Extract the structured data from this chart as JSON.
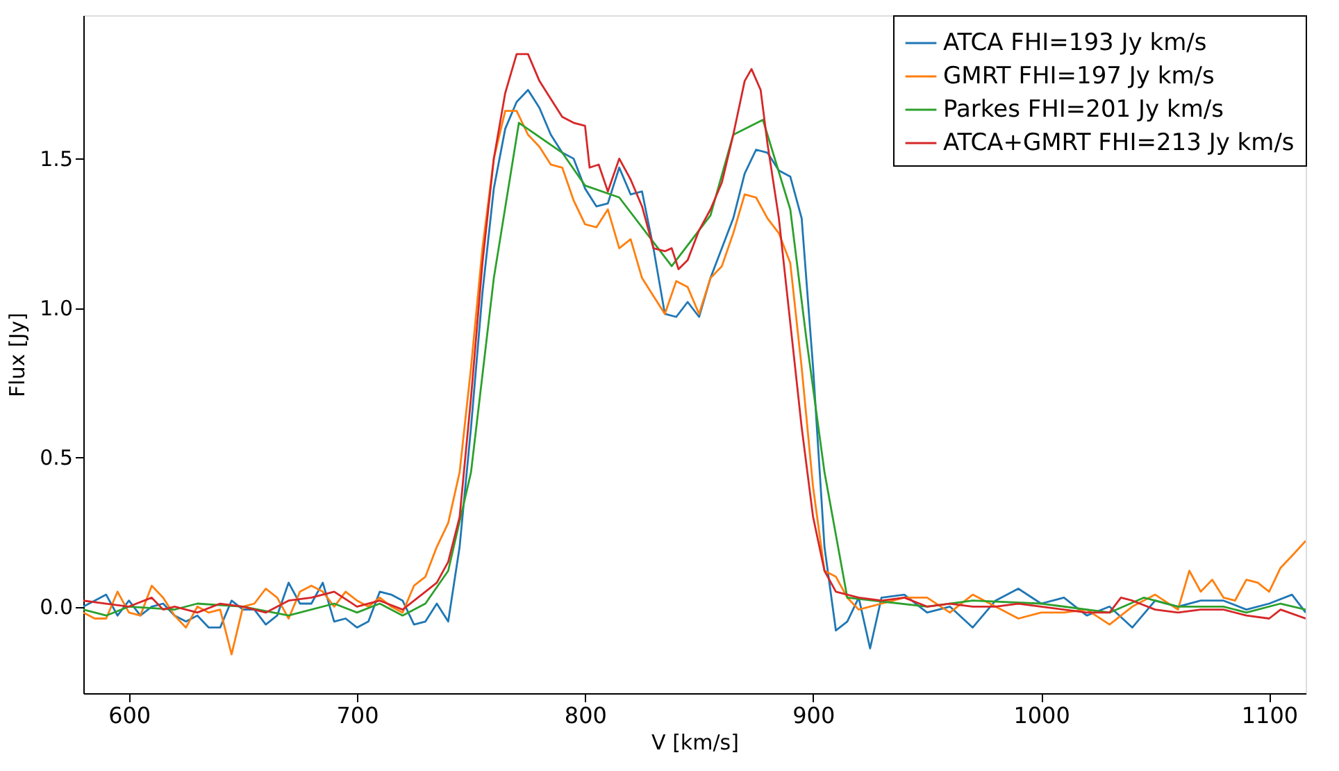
{
  "chart_data": {
    "type": "line",
    "xlabel": "V [km/s]",
    "ylabel": "Flux [Jy]",
    "xlim": [
      580,
      1116
    ],
    "ylim": [
      -0.29,
      1.98
    ],
    "xticks": [
      600,
      700,
      800,
      900,
      1000,
      1100
    ],
    "yticks": [
      {
        "value": 0,
        "label": "0.0"
      },
      {
        "value": 0.5,
        "label": "0.5"
      },
      {
        "value": 1,
        "label": "1.0"
      },
      {
        "value": 1.5,
        "label": "1.5"
      }
    ],
    "grid": false,
    "legend": "top right",
    "marker": "none",
    "line_style": "solid",
    "series": [
      {
        "name": "ATCA FHI=193 Jy km/s",
        "color": "#1f77b4",
        "x": [
          580,
          585,
          590,
          595,
          600,
          605,
          610,
          615,
          620,
          625,
          630,
          635,
          640,
          645,
          650,
          655,
          660,
          665,
          670,
          675,
          680,
          685,
          690,
          695,
          700,
          705,
          710,
          715,
          720,
          725,
          730,
          735,
          740,
          745,
          750,
          755,
          760,
          765,
          770,
          775,
          780,
          785,
          790,
          795,
          800,
          805,
          810,
          815,
          820,
          825,
          830,
          835,
          840,
          845,
          850,
          855,
          860,
          865,
          870,
          875,
          880,
          885,
          890,
          895,
          900,
          905,
          910,
          915,
          920,
          925,
          930,
          940,
          950,
          960,
          970,
          980,
          990,
          1000,
          1010,
          1020,
          1030,
          1040,
          1050,
          1060,
          1070,
          1080,
          1090,
          1100,
          1110,
          1116
        ],
        "values": [
          0.0,
          0.02,
          0.04,
          -0.03,
          0.02,
          -0.03,
          0.0,
          0.01,
          -0.03,
          -0.05,
          -0.03,
          -0.07,
          -0.07,
          0.02,
          -0.01,
          -0.01,
          -0.06,
          -0.03,
          0.08,
          0.01,
          0.01,
          0.08,
          -0.05,
          -0.04,
          -0.07,
          -0.05,
          0.05,
          0.04,
          0.02,
          -0.06,
          -0.05,
          0.01,
          -0.05,
          0.2,
          0.6,
          1.05,
          1.4,
          1.6,
          1.69,
          1.73,
          1.67,
          1.58,
          1.52,
          1.5,
          1.4,
          1.34,
          1.35,
          1.47,
          1.38,
          1.39,
          1.2,
          0.98,
          0.97,
          1.02,
          0.97,
          1.1,
          1.2,
          1.3,
          1.45,
          1.53,
          1.52,
          1.46,
          1.44,
          1.3,
          0.8,
          0.2,
          -0.08,
          -0.05,
          0.03,
          -0.14,
          0.03,
          0.04,
          -0.02,
          0.0,
          -0.07,
          0.02,
          0.06,
          0.01,
          0.03,
          -0.03,
          0.0,
          -0.07,
          0.02,
          0.0,
          0.02,
          0.02,
          -0.01,
          0.01,
          0.04,
          -0.02
        ]
      },
      {
        "name": "GMRT FHI=197 Jy km/s",
        "color": "#ff7f0e",
        "x": [
          580,
          585,
          590,
          595,
          600,
          605,
          610,
          615,
          620,
          625,
          630,
          635,
          640,
          645,
          650,
          655,
          660,
          665,
          670,
          675,
          680,
          685,
          690,
          695,
          700,
          705,
          710,
          715,
          720,
          725,
          730,
          735,
          740,
          745,
          750,
          755,
          760,
          765,
          770,
          775,
          780,
          785,
          790,
          795,
          800,
          805,
          810,
          815,
          820,
          825,
          830,
          835,
          840,
          845,
          850,
          855,
          860,
          865,
          870,
          875,
          880,
          885,
          890,
          895,
          900,
          905,
          910,
          915,
          920,
          930,
          940,
          950,
          960,
          970,
          980,
          990,
          1000,
          1010,
          1020,
          1030,
          1040,
          1050,
          1060,
          1065,
          1070,
          1075,
          1080,
          1085,
          1090,
          1095,
          1100,
          1105,
          1110,
          1116
        ],
        "values": [
          -0.02,
          -0.04,
          -0.04,
          0.05,
          -0.02,
          -0.03,
          0.07,
          0.03,
          -0.03,
          -0.07,
          0.0,
          -0.02,
          -0.01,
          -0.16,
          0.0,
          0.01,
          0.06,
          0.03,
          -0.04,
          0.05,
          0.07,
          0.05,
          0.0,
          0.05,
          0.02,
          0.0,
          0.03,
          0.0,
          -0.02,
          0.07,
          0.1,
          0.2,
          0.28,
          0.45,
          0.8,
          1.2,
          1.5,
          1.66,
          1.66,
          1.58,
          1.54,
          1.48,
          1.47,
          1.36,
          1.28,
          1.27,
          1.33,
          1.2,
          1.23,
          1.1,
          1.04,
          0.98,
          1.09,
          1.07,
          0.98,
          1.1,
          1.14,
          1.25,
          1.38,
          1.37,
          1.3,
          1.25,
          1.15,
          0.8,
          0.4,
          0.12,
          0.1,
          0.03,
          -0.01,
          0.01,
          0.03,
          0.03,
          -0.02,
          0.04,
          0.0,
          -0.04,
          -0.02,
          -0.02,
          -0.01,
          -0.06,
          0.0,
          0.04,
          -0.01,
          0.12,
          0.05,
          0.09,
          0.03,
          0.02,
          0.09,
          0.08,
          0.05,
          0.13,
          0.17,
          0.22
        ]
      },
      {
        "name": "Parkes FHI=201 Jy km/s",
        "color": "#2ca02c",
        "x": [
          580,
          590,
          600,
          620,
          630,
          650,
          670,
          690,
          700,
          710,
          720,
          730,
          740,
          750,
          760,
          771,
          790,
          800,
          815,
          838,
          855,
          865,
          878,
          890,
          897,
          905,
          915,
          950,
          970,
          1000,
          1030,
          1045,
          1060,
          1080,
          1090,
          1105,
          1116
        ],
        "values": [
          -0.01,
          -0.03,
          0.0,
          -0.01,
          0.01,
          0.0,
          -0.03,
          0.01,
          -0.02,
          0.01,
          -0.03,
          0.01,
          0.12,
          0.45,
          1.1,
          1.62,
          1.52,
          1.41,
          1.37,
          1.14,
          1.31,
          1.58,
          1.63,
          1.33,
          0.9,
          0.45,
          0.03,
          0.0,
          0.02,
          0.01,
          -0.02,
          0.03,
          0.0,
          0.0,
          -0.02,
          0.01,
          -0.01
        ]
      },
      {
        "name": "ATCA+GMRT FHI=213 Jy km/s",
        "color": "#d62728",
        "x": [
          580,
          590,
          600,
          610,
          615,
          620,
          630,
          640,
          650,
          660,
          670,
          680,
          690,
          700,
          710,
          720,
          730,
          735,
          740,
          745,
          750,
          755,
          760,
          765,
          770,
          775,
          780,
          785,
          790,
          795,
          800,
          802,
          806,
          810,
          815,
          820,
          825,
          830,
          835,
          838,
          841,
          845,
          850,
          855,
          860,
          865,
          870,
          873,
          877,
          880,
          885,
          890,
          895,
          900,
          905,
          910,
          920,
          930,
          940,
          950,
          960,
          970,
          980,
          990,
          1000,
          1010,
          1020,
          1030,
          1035,
          1040,
          1050,
          1060,
          1070,
          1080,
          1090,
          1100,
          1105,
          1116
        ],
        "values": [
          0.02,
          0.01,
          0.0,
          0.03,
          -0.01,
          0.0,
          -0.02,
          0.01,
          0.0,
          -0.02,
          0.02,
          0.03,
          0.05,
          0.0,
          0.02,
          -0.01,
          0.05,
          0.08,
          0.15,
          0.3,
          0.7,
          1.15,
          1.5,
          1.72,
          1.85,
          1.85,
          1.76,
          1.7,
          1.64,
          1.62,
          1.61,
          1.47,
          1.48,
          1.39,
          1.5,
          1.43,
          1.34,
          1.2,
          1.19,
          1.2,
          1.13,
          1.16,
          1.26,
          1.33,
          1.42,
          1.58,
          1.76,
          1.8,
          1.73,
          1.55,
          1.3,
          0.95,
          0.6,
          0.3,
          0.12,
          0.05,
          0.03,
          0.02,
          0.03,
          0.0,
          0.01,
          0.0,
          0.0,
          0.01,
          0.0,
          -0.01,
          -0.02,
          -0.02,
          0.03,
          0.02,
          -0.01,
          -0.02,
          -0.01,
          -0.01,
          -0.03,
          -0.04,
          -0.01,
          -0.04
        ]
      }
    ]
  }
}
